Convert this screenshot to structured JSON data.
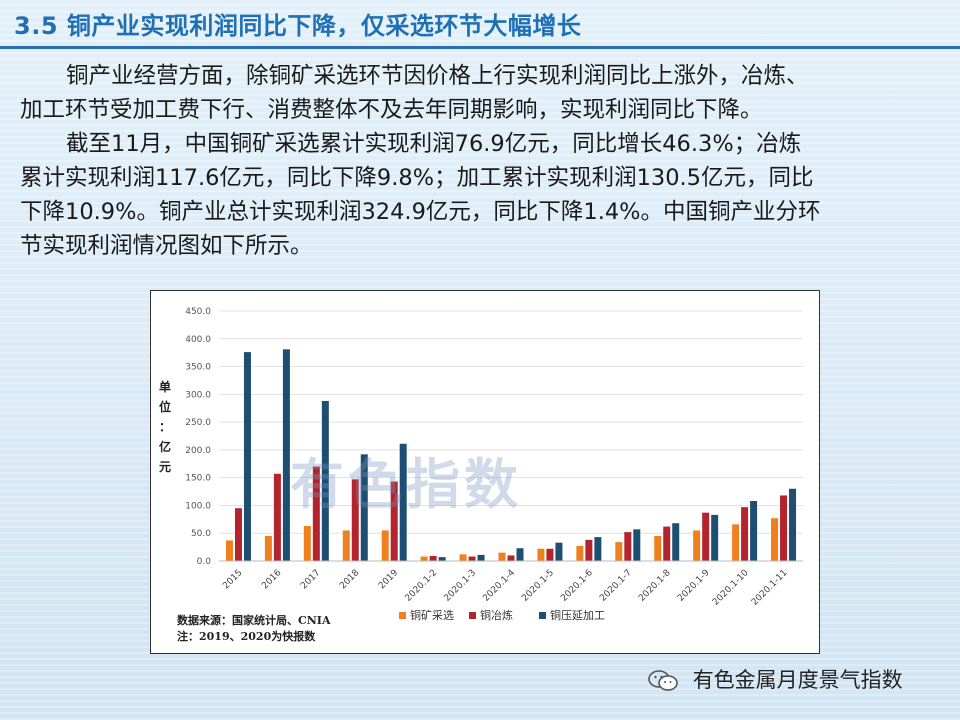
{
  "page": {
    "title": "3.5 铜产业实现利润同比下降，仅采选环节大幅增长",
    "paragraph1_lines": [
      "铜产业经营方面，除铜矿采选环节因价格上行实现利润同比上涨外，冶炼、",
      "加工环节受加工费下行、消费整体不及去年同期影响，实现利润同比下降。"
    ],
    "paragraph2_lines": [
      "截至11月，中国铜矿采选累计实现利润76.9亿元，同比增长46.3%；冶炼",
      "累计实现利润117.6亿元，同比下降9.8%；加工累计实现利润130.5亿元，同比",
      "下降10.9%。铜产业总计实现利润324.9亿元，同比下降1.4%。中国铜产业分环",
      "节实现利润情况图如下所示。"
    ],
    "watermark": "有色指数",
    "footer_brand": "有色金属月度景气指数"
  },
  "colors": {
    "mining": "#f07f1e",
    "smelting": "#b3242f",
    "processing": "#1f4e73",
    "title": "#1f6fb5"
  },
  "chart_data": {
    "type": "bar",
    "ylabel_chars": [
      "单",
      "位",
      "：",
      "亿",
      "元"
    ],
    "ylim": [
      0,
      450
    ],
    "yticks": [
      "0.0",
      "50.0",
      "100.0",
      "150.0",
      "200.0",
      "250.0",
      "300.0",
      "350.0",
      "400.0",
      "450.0"
    ],
    "categories": [
      "2015",
      "2016",
      "2017",
      "2018",
      "2019",
      "2020.1-2",
      "2020.1-3",
      "2020.1-4",
      "2020.1-5",
      "2020.1-6",
      "2020.1-7",
      "2020.1-8",
      "2020.1-9",
      "2020.1-10",
      "2020.1-11"
    ],
    "series": [
      {
        "name": "铜矿采选",
        "values": [
          37,
          45,
          63,
          55,
          55,
          8,
          12,
          15,
          22,
          27,
          34,
          45,
          55,
          66,
          77
        ]
      },
      {
        "name": "铜冶炼",
        "values": [
          95,
          157,
          170,
          147,
          143,
          9,
          8,
          10,
          22,
          38,
          52,
          62,
          87,
          97,
          118
        ]
      },
      {
        "name": "铜压延加工",
        "values": [
          376,
          381,
          288,
          192,
          211,
          7,
          11,
          23,
          33,
          43,
          57,
          68,
          83,
          108,
          130
        ]
      }
    ],
    "source_note": "数据来源：国家统计局、CNIA",
    "note": "注：2019、2020为快报数",
    "legend_position": "bottom"
  }
}
